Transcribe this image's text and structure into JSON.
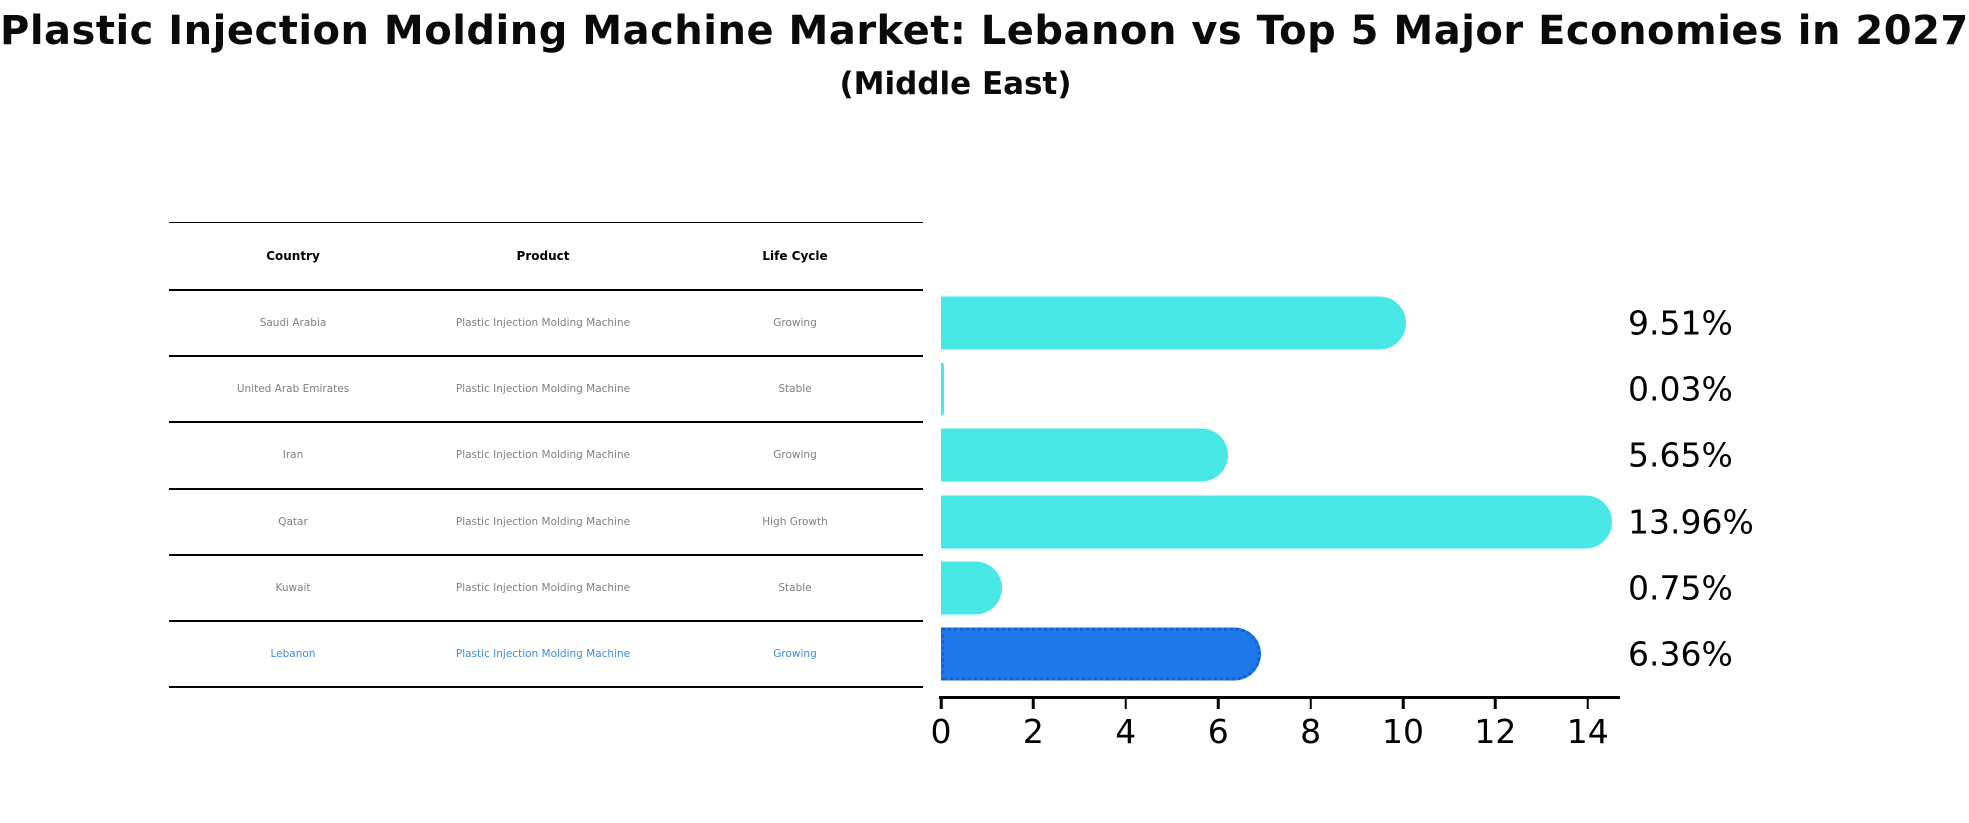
{
  "title": "Plastic Injection Molding Machine Market: Lebanon vs Top 5 Major Economies in 2027",
  "subtitle": "(Middle East)",
  "table": {
    "headers": [
      "Country",
      "Product",
      "Life Cycle"
    ],
    "rows": [
      {
        "country": "Saudi Arabia",
        "product": "Plastic Injection Molding Machine",
        "life_cycle": "Growing",
        "highlight": false
      },
      {
        "country": "United Arab Emirates",
        "product": "Plastic Injection Molding Machine",
        "life_cycle": "Stable",
        "highlight": false
      },
      {
        "country": "Iran",
        "product": "Plastic Injection Molding Machine",
        "life_cycle": "Growing",
        "highlight": false
      },
      {
        "country": "Qatar",
        "product": "Plastic Injection Molding Machine",
        "life_cycle": "High Growth",
        "highlight": false
      },
      {
        "country": "Kuwait",
        "product": "Plastic Injection Molding Machine",
        "life_cycle": "Stable",
        "highlight": false
      },
      {
        "country": "Lebanon",
        "product": "Plastic Injection Molding Machine",
        "life_cycle": "Growing",
        "highlight": true
      }
    ]
  },
  "chart_data": {
    "type": "bar",
    "orientation": "horizontal",
    "title": "Plastic Injection Molding Machine Market: Lebanon vs Top 5 Major Economies in 2027 (Middle East)",
    "categories": [
      "Saudi Arabia",
      "United Arab Emirates",
      "Iran",
      "Qatar",
      "Kuwait",
      "Lebanon"
    ],
    "values": [
      9.51,
      0.03,
      5.65,
      13.96,
      0.75,
      6.36
    ],
    "data_labels": [
      "9.51%",
      "0.03%",
      "5.65%",
      "13.96%",
      "0.75%",
      "6.36%"
    ],
    "x_ticks": [
      "0",
      "2",
      "4",
      "6",
      "8",
      "10",
      "12",
      "14"
    ],
    "xlim": [
      0,
      14.7
    ],
    "grid": false,
    "legend": false,
    "bar_color": "#47E8E6",
    "highlight_index": 5,
    "highlight_color": "#1E78EA",
    "highlight_border_color": "#1160D6"
  }
}
